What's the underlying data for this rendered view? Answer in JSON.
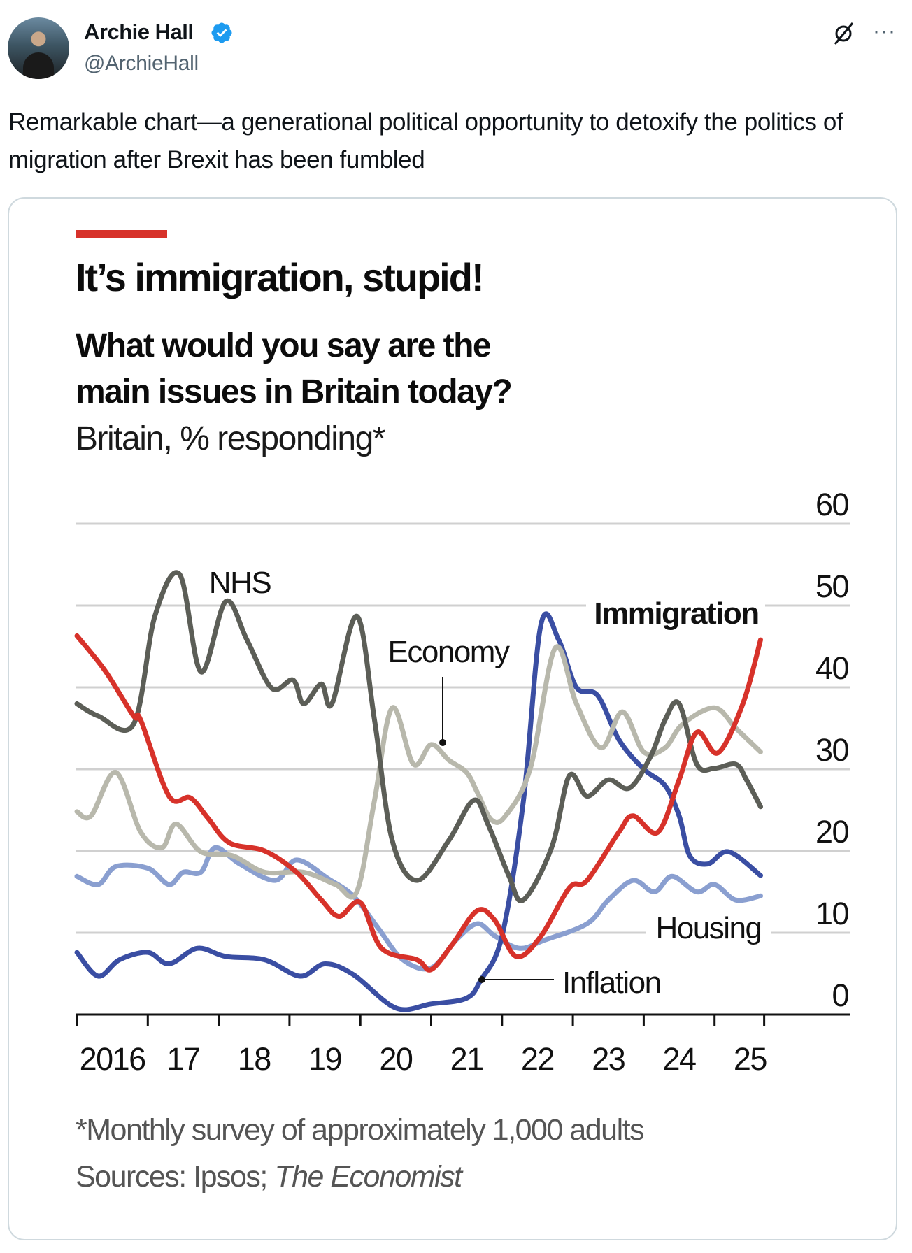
{
  "tweet": {
    "author_name": "Archie Hall",
    "handle": "@ArchieHall",
    "text": "Remarkable chart—a generational political opportunity to detoxify the politics of migration after Brexit has been fumbled",
    "icons": [
      "verified-badge-icon",
      "grok-icon",
      "more-icon"
    ],
    "more_label": "···"
  },
  "card": {
    "title": "It’s immigration, stupid!",
    "subtitle_line1": "What would you say are the",
    "subtitle_line2": "main issues in Britain today?",
    "unit": "Britain, % responding*",
    "footnote": "*Monthly survey of approximately 1,000 adults",
    "sources_prefix": "Sources: Ipsos; ",
    "sources_italic": "The Economist"
  },
  "chart_data": {
    "type": "line",
    "title": "It’s immigration, stupid!",
    "ylabel": "% responding",
    "ylim": [
      0,
      60
    ],
    "yticks": [
      "0",
      "10",
      "20",
      "30",
      "40",
      "50",
      "60"
    ],
    "xlim": [
      2016,
      2025.7
    ],
    "xtick_labels": [
      "2016",
      "17",
      "18",
      "19",
      "20",
      "21",
      "22",
      "23",
      "24",
      "25"
    ],
    "grid": true,
    "accent_color": "#d7322a",
    "series": [
      {
        "name": "Immigration",
        "color": "#d7322a",
        "bold": true,
        "x": [
          2016.0,
          2016.4,
          2016.8,
          2016.9,
          2017.3,
          2017.6,
          2017.85,
          2018.15,
          2018.65,
          2019.1,
          2019.45,
          2019.7,
          2020.0,
          2020.3,
          2020.8,
          2021.0,
          2021.3,
          2021.65,
          2021.9,
          2022.2,
          2022.55,
          2022.95,
          2023.2,
          2023.65,
          2023.85,
          2024.2,
          2024.5,
          2024.75,
          2025.05,
          2025.4,
          2025.65
        ],
        "y": [
          46.3,
          42,
          36.5,
          36,
          26.7,
          26.5,
          24,
          21,
          20,
          17.4,
          14,
          12,
          13.7,
          8.1,
          6.7,
          5.5,
          8.6,
          12.7,
          11.5,
          7.1,
          9.6,
          15.5,
          16.4,
          22.3,
          24.3,
          22.3,
          28.7,
          34.5,
          32,
          38,
          45.8
        ]
      },
      {
        "name": "NHS",
        "color": "#5c5e57",
        "x": [
          2016.0,
          2016.3,
          2016.8,
          2017.1,
          2017.45,
          2017.75,
          2018.1,
          2018.4,
          2018.75,
          2019.05,
          2019.2,
          2019.45,
          2019.6,
          2019.95,
          2020.2,
          2020.45,
          2020.8,
          2021.25,
          2021.6,
          2021.8,
          2022.1,
          2022.3,
          2022.7,
          2022.95,
          2023.2,
          2023.5,
          2023.8,
          2024.1,
          2024.3,
          2024.5,
          2024.75,
          2025.0,
          2025.3,
          2025.45,
          2025.65
        ],
        "y": [
          38,
          36.5,
          35.5,
          48.7,
          53.8,
          41.9,
          50.5,
          45.8,
          39.9,
          40.9,
          38,
          40.4,
          38,
          48.7,
          36,
          21.3,
          16.4,
          21.3,
          26.2,
          23.3,
          16.9,
          14,
          20.4,
          29.2,
          26.7,
          28.7,
          27.7,
          31.6,
          36,
          38,
          30.6,
          30.1,
          30.6,
          28.7,
          25.4
        ]
      },
      {
        "name": "Economy",
        "color": "#b8b8ac",
        "x": [
          2016.0,
          2016.2,
          2016.55,
          2016.9,
          2017.2,
          2017.4,
          2017.75,
          2018.2,
          2018.65,
          2019.2,
          2019.65,
          2019.95,
          2020.2,
          2020.45,
          2020.75,
          2021.0,
          2021.25,
          2021.5,
          2021.65,
          2021.85,
          2022.05,
          2022.4,
          2022.75,
          2023.05,
          2023.4,
          2023.7,
          2024.0,
          2024.3,
          2024.55,
          2025.0,
          2025.3,
          2025.65
        ],
        "y": [
          24.8,
          24.3,
          29.6,
          22.3,
          20.4,
          23.3,
          19.9,
          19.4,
          17.4,
          17.4,
          15.9,
          15,
          26.2,
          37.5,
          30.6,
          33,
          31.1,
          29.6,
          27.2,
          23.8,
          24.3,
          30.1,
          44.8,
          38,
          32.6,
          37,
          32.1,
          32.6,
          35.5,
          37.5,
          35,
          32.1
        ]
      },
      {
        "name": "Housing",
        "color": "#8a9fd0",
        "x": [
          2016.0,
          2016.3,
          2016.55,
          2017.0,
          2017.3,
          2017.5,
          2017.75,
          2017.95,
          2018.3,
          2018.8,
          2019.1,
          2019.55,
          2019.9,
          2020.25,
          2020.6,
          2021.0,
          2021.35,
          2021.65,
          2021.9,
          2022.25,
          2022.6,
          2023.2,
          2023.5,
          2023.85,
          2024.15,
          2024.4,
          2024.75,
          2025.0,
          2025.3,
          2025.65
        ],
        "y": [
          16.9,
          15.9,
          18.1,
          17.9,
          15.9,
          17.4,
          17.4,
          20.4,
          18.4,
          16.4,
          18.9,
          16.6,
          14.5,
          10.6,
          6.7,
          5.7,
          9.1,
          11.1,
          9.6,
          8.1,
          9.1,
          11.1,
          14,
          16.4,
          15,
          16.9,
          15,
          15.9,
          14,
          14.5
        ]
      },
      {
        "name": "Inflation",
        "color": "#3a4ea3",
        "x": [
          2016.0,
          2016.3,
          2016.6,
          2017.0,
          2017.3,
          2017.7,
          2018.1,
          2018.65,
          2019.15,
          2019.5,
          2019.9,
          2020.5,
          2021.0,
          2021.5,
          2021.7,
          2022.0,
          2022.3,
          2022.55,
          2022.8,
          2023.05,
          2023.35,
          2023.65,
          2024.0,
          2024.3,
          2024.5,
          2024.65,
          2024.9,
          2025.2,
          2025.65
        ],
        "y": [
          7.6,
          4.7,
          6.7,
          7.6,
          6.2,
          8.1,
          7.1,
          6.7,
          4.7,
          6.2,
          4.9,
          0.8,
          1.3,
          2.0,
          4.2,
          9.6,
          26,
          47.7,
          45.8,
          40,
          39,
          33.6,
          30,
          28,
          24.3,
          19.4,
          18.4,
          19.9,
          17
        ]
      }
    ],
    "annotations": [
      {
        "text": "NHS"
      },
      {
        "text": "Economy"
      },
      {
        "text": "Immigration"
      },
      {
        "text": "Housing"
      },
      {
        "text": "Inflation"
      }
    ]
  }
}
